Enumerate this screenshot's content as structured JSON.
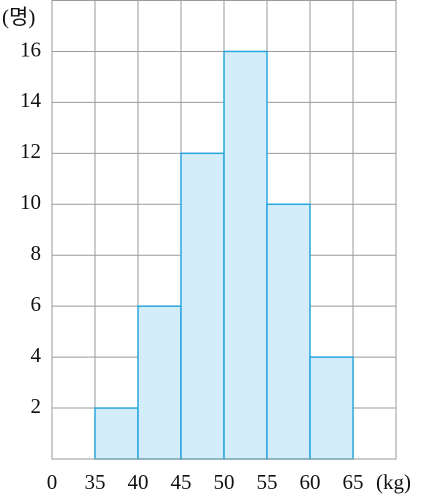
{
  "chart_data": {
    "type": "histogram",
    "y_label": "(명)",
    "x_label": "(kg)",
    "bins": [
      35,
      40,
      45,
      50,
      55,
      60,
      65
    ],
    "values": [
      2,
      6,
      12,
      16,
      10,
      4
    ],
    "color": "#d3edfa",
    "edge_color": "#2aa6dc",
    "xlim": [
      30,
      70
    ],
    "xticks": [
      0,
      35,
      40,
      45,
      50,
      55,
      60,
      65
    ],
    "x_axis_break": true,
    "ylim": [
      0,
      18
    ],
    "yticks": [
      2,
      4,
      6,
      8,
      10,
      12,
      14,
      16
    ],
    "grid": true
  }
}
